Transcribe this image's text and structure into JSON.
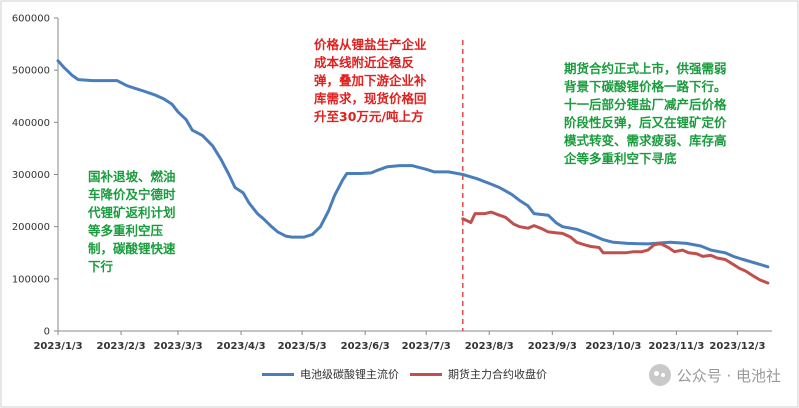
{
  "chart_data": {
    "type": "line",
    "title": "",
    "xlabel": "",
    "ylabel": "",
    "ylim": [
      0,
      600000
    ],
    "y_ticks": [
      0,
      100000,
      200000,
      300000,
      400000,
      500000,
      600000
    ],
    "x_tick_labels": [
      "2023/1/3",
      "2023/2/3",
      "2023/3/3",
      "2023/4/3",
      "2023/5/3",
      "2023/6/3",
      "2023/7/3",
      "2023/8/3",
      "2023/9/3",
      "2023/10/3",
      "2023/11/3",
      "2023/12/3"
    ],
    "x_tick_dates": [
      "2023-01-03",
      "2023-02-03",
      "2023-03-03",
      "2023-04-03",
      "2023-05-03",
      "2023-06-03",
      "2023-07-03",
      "2023-08-03",
      "2023-09-03",
      "2023-10-03",
      "2023-11-03",
      "2023-12-03"
    ],
    "x_range": [
      "2023-01-03",
      "2023-12-20"
    ],
    "grid": false,
    "legend_position": "bottom",
    "series": [
      {
        "name": "电池级碳酸锂主流价",
        "color": "#4a7ebb",
        "points": [
          [
            "2023-01-03",
            518000
          ],
          [
            "2023-01-06",
            505000
          ],
          [
            "2023-01-10",
            490000
          ],
          [
            "2023-01-13",
            482000
          ],
          [
            "2023-01-20",
            480000
          ],
          [
            "2023-02-01",
            480000
          ],
          [
            "2023-02-06",
            470000
          ],
          [
            "2023-02-10",
            465000
          ],
          [
            "2023-02-14",
            460000
          ],
          [
            "2023-02-20",
            452000
          ],
          [
            "2023-02-24",
            445000
          ],
          [
            "2023-02-28",
            435000
          ],
          [
            "2023-03-03",
            420000
          ],
          [
            "2023-03-07",
            405000
          ],
          [
            "2023-03-10",
            385000
          ],
          [
            "2023-03-15",
            375000
          ],
          [
            "2023-03-20",
            355000
          ],
          [
            "2023-03-24",
            330000
          ],
          [
            "2023-03-28",
            300000
          ],
          [
            "2023-03-31",
            275000
          ],
          [
            "2023-04-04",
            265000
          ],
          [
            "2023-04-07",
            245000
          ],
          [
            "2023-04-11",
            225000
          ],
          [
            "2023-04-14",
            215000
          ],
          [
            "2023-04-18",
            200000
          ],
          [
            "2023-04-21",
            190000
          ],
          [
            "2023-04-25",
            182000
          ],
          [
            "2023-04-28",
            180000
          ],
          [
            "2023-05-04",
            180000
          ],
          [
            "2023-05-08",
            185000
          ],
          [
            "2023-05-12",
            200000
          ],
          [
            "2023-05-16",
            230000
          ],
          [
            "2023-05-19",
            260000
          ],
          [
            "2023-05-23",
            290000
          ],
          [
            "2023-05-25",
            302000
          ],
          [
            "2023-06-01",
            302000
          ],
          [
            "2023-06-06",
            303000
          ],
          [
            "2023-06-09",
            308000
          ],
          [
            "2023-06-14",
            315000
          ],
          [
            "2023-06-20",
            317000
          ],
          [
            "2023-06-26",
            317000
          ],
          [
            "2023-07-03",
            310000
          ],
          [
            "2023-07-07",
            305000
          ],
          [
            "2023-07-14",
            305000
          ],
          [
            "2023-07-21",
            300000
          ],
          [
            "2023-07-28",
            292000
          ],
          [
            "2023-08-03",
            283000
          ],
          [
            "2023-08-08",
            275000
          ],
          [
            "2023-08-14",
            262000
          ],
          [
            "2023-08-18",
            250000
          ],
          [
            "2023-08-22",
            240000
          ],
          [
            "2023-08-25",
            225000
          ],
          [
            "2023-09-01",
            222000
          ],
          [
            "2023-09-05",
            207000
          ],
          [
            "2023-09-08",
            200000
          ],
          [
            "2023-09-15",
            195000
          ],
          [
            "2023-09-22",
            185000
          ],
          [
            "2023-09-28",
            175000
          ],
          [
            "2023-10-03",
            170000
          ],
          [
            "2023-10-10",
            168000
          ],
          [
            "2023-10-20",
            167000
          ],
          [
            "2023-10-31",
            170000
          ],
          [
            "2023-11-08",
            168000
          ],
          [
            "2023-11-15",
            163000
          ],
          [
            "2023-11-20",
            155000
          ],
          [
            "2023-11-27",
            150000
          ],
          [
            "2023-12-01",
            143000
          ],
          [
            "2023-12-05",
            138000
          ],
          [
            "2023-12-12",
            130000
          ],
          [
            "2023-12-18",
            123000
          ]
        ]
      },
      {
        "name": "期货主力合约收盘价",
        "color": "#c0504d",
        "points": [
          [
            "2023-07-21",
            215000
          ],
          [
            "2023-07-25",
            208000
          ],
          [
            "2023-07-27",
            225000
          ],
          [
            "2023-08-01",
            225000
          ],
          [
            "2023-08-04",
            228000
          ],
          [
            "2023-08-08",
            222000
          ],
          [
            "2023-08-11",
            218000
          ],
          [
            "2023-08-15",
            205000
          ],
          [
            "2023-08-18",
            200000
          ],
          [
            "2023-08-22",
            197000
          ],
          [
            "2023-08-25",
            202000
          ],
          [
            "2023-08-29",
            196000
          ],
          [
            "2023-09-01",
            190000
          ],
          [
            "2023-09-05",
            188000
          ],
          [
            "2023-09-08",
            187000
          ],
          [
            "2023-09-12",
            180000
          ],
          [
            "2023-09-15",
            170000
          ],
          [
            "2023-09-19",
            165000
          ],
          [
            "2023-09-22",
            162000
          ],
          [
            "2023-09-26",
            160000
          ],
          [
            "2023-09-28",
            150000
          ],
          [
            "2023-10-09",
            150000
          ],
          [
            "2023-10-13",
            152000
          ],
          [
            "2023-10-17",
            152000
          ],
          [
            "2023-10-20",
            155000
          ],
          [
            "2023-10-23",
            165000
          ],
          [
            "2023-10-26",
            168000
          ],
          [
            "2023-10-30",
            160000
          ],
          [
            "2023-11-02",
            152000
          ],
          [
            "2023-11-06",
            155000
          ],
          [
            "2023-11-09",
            150000
          ],
          [
            "2023-11-13",
            148000
          ],
          [
            "2023-11-16",
            143000
          ],
          [
            "2023-11-20",
            145000
          ],
          [
            "2023-11-23",
            140000
          ],
          [
            "2023-11-27",
            137000
          ],
          [
            "2023-11-30",
            130000
          ],
          [
            "2023-12-04",
            120000
          ],
          [
            "2023-12-07",
            115000
          ],
          [
            "2023-12-11",
            105000
          ],
          [
            "2023-12-14",
            98000
          ],
          [
            "2023-12-18",
            92000
          ]
        ]
      }
    ],
    "marker_line": {
      "date": "2023-07-21",
      "style": "dashed",
      "color": "#e03030"
    },
    "annotations": [
      {
        "text": "价格从锂盐生产企业成本线附近企稳反弹，叠加下游企业补库需求，现货价格回升至30万元/吨上方",
        "color": "#e0201e"
      },
      {
        "text": "国补退坡、燃油车降价及宁德时代锂矿返利计划等多重利空压制，碳酸锂快速下行",
        "color": "#1a9c3e"
      },
      {
        "text": "期货合约正式上市，供强需弱背景下碳酸锂价格一路下行。十一后部分锂盐厂减产后价格阶段性反弹，后又在锂矿定价模式转变、需求疲弱、库存高企等多重利空下寻底",
        "color": "#1a9c3e"
      }
    ]
  },
  "legend": {
    "spot_label": "电池级碳酸锂主流价",
    "futures_label": "期货主力合约收盘价"
  },
  "watermark": {
    "text": "公众号 · 电池社",
    "icon": "wechat-icon"
  },
  "annotations_text": {
    "red_lines": [
      "价格从锂盐生产企业",
      "成本线附近企稳反",
      "弹，叠加下游企业补",
      "库需求，现货价格回",
      "升至30万元/吨上方"
    ],
    "left_green_lines": [
      "国补退坡、燃油",
      "车降价及宁德时",
      "代锂矿返利计划",
      "等多重利空压",
      "制，碳酸锂快速",
      "下行"
    ],
    "right_green_lines": [
      "期货合约正式上市，供强需弱",
      "背景下碳酸锂价格一路下行。",
      "十一后部分锂盐厂减产后价格",
      "阶段性反弹，后又在锂矿定价",
      "模式转变、需求疲弱、库存高",
      "企等多重利空下寻底"
    ]
  }
}
